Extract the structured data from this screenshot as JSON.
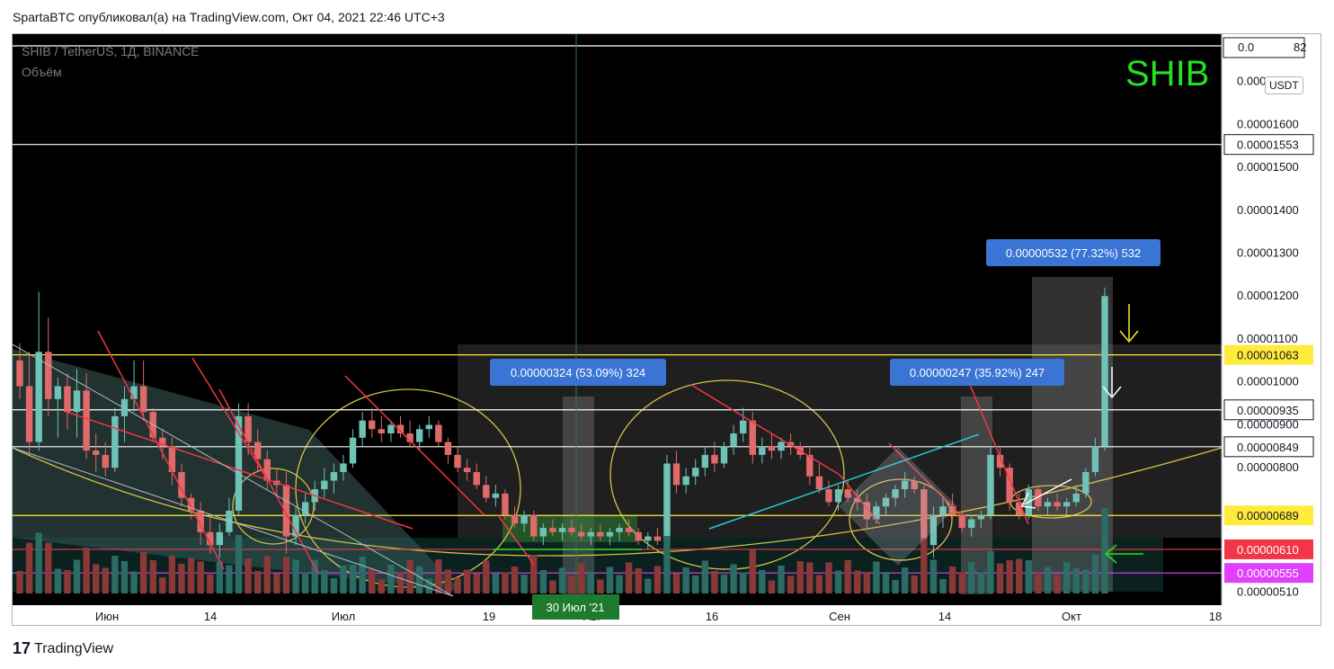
{
  "header": {
    "text": "SpartaBTC опубликовал(а) на TradingView.com, Окт 04, 2021 22:46 UTC+3"
  },
  "chart": {
    "symbol": "SHIB / TetherUS, 1Д, BINANCE",
    "volume_label": "Объём",
    "big_label": "SHIB",
    "currency": "USDT",
    "top_price_fragment": "0.0",
    "top_price_tail": "82"
  },
  "footer": {
    "logo_text": "TradingView",
    "logo_mark": "17"
  },
  "chart_data": {
    "type": "candlestick",
    "ylim": [
      4.8e-06,
      1.81e-05
    ],
    "y_ticks": [
      "0.00001700",
      "0.00001600",
      "0.00001500",
      "0.00001400",
      "0.00001300",
      "0.00001200",
      "0.00001100",
      "0.00001000",
      "0.00000900",
      "0.00000800",
      "0.00000510"
    ],
    "x_ticks": [
      "Июн",
      "14",
      "Июл",
      "19",
      "Авг",
      "16",
      "Сен",
      "14",
      "Окт",
      "18"
    ],
    "cursor_date_label": "30 Июл '21",
    "horizontal_levels": [
      {
        "label": "0.00001553",
        "value": 1.553e-05,
        "color": "#ffffff",
        "text_color": "#131722"
      },
      {
        "label": "0.00001063",
        "value": 1.063e-05,
        "color": "#ffeb3b",
        "text_color": "#131722"
      },
      {
        "label": "0.00000935",
        "value": 9.35e-06,
        "color": "#ffffff",
        "text_color": "#131722"
      },
      {
        "label": "0.00000849",
        "value": 8.49e-06,
        "color": "#ffffff",
        "text_color": "#131722"
      },
      {
        "label": "0.00000689",
        "value": 6.89e-06,
        "color": "#ffeb3b",
        "text_color": "#131722"
      },
      {
        "label": "0.00000610",
        "value": 6.1e-06,
        "color": "#f23645",
        "text_color": "#ffffff"
      },
      {
        "label": "0.00000555",
        "value": 5.55e-06,
        "color": "#e040fb",
        "text_color": "#ffffff"
      }
    ],
    "measure_labels": [
      "0.00000532 (77.32%) 532",
      "0.00000324 (53.09%) 324",
      "0.00000247 (35.92%) 247"
    ],
    "candles": [
      [
        10.5,
        10.9,
        9.6,
        9.9
      ],
      [
        9.9,
        10.7,
        8.3,
        8.6
      ],
      [
        8.6,
        12.1,
        8.4,
        10.7
      ],
      [
        10.7,
        11.5,
        9.2,
        9.6
      ],
      [
        9.6,
        10.1,
        8.7,
        9.9
      ],
      [
        9.9,
        10.2,
        8.9,
        9.3
      ],
      [
        9.3,
        10.3,
        8.7,
        9.8
      ],
      [
        9.8,
        10.2,
        8.2,
        8.4
      ],
      [
        8.4,
        8.8,
        7.9,
        8.3
      ],
      [
        8.3,
        8.6,
        7.8,
        8.0
      ],
      [
        8.0,
        9.4,
        7.9,
        9.2
      ],
      [
        9.2,
        9.9,
        8.6,
        9.6
      ],
      [
        9.6,
        10.5,
        9.3,
        9.9
      ],
      [
        9.9,
        10.5,
        9.1,
        9.3
      ],
      [
        9.3,
        9.4,
        8.6,
        8.7
      ],
      [
        8.7,
        8.9,
        8.2,
        8.5
      ],
      [
        8.5,
        8.7,
        7.6,
        7.9
      ],
      [
        7.9,
        8.1,
        7.1,
        7.3
      ],
      [
        7.3,
        7.4,
        6.8,
        7.0
      ],
      [
        7.0,
        7.2,
        6.2,
        6.5
      ],
      [
        6.5,
        6.9,
        6.0,
        6.2
      ],
      [
        6.2,
        6.7,
        5.9,
        6.5
      ],
      [
        6.5,
        7.3,
        6.4,
        7.0
      ],
      [
        7.0,
        9.5,
        6.9,
        9.2
      ],
      [
        9.2,
        9.5,
        8.3,
        8.6
      ],
      [
        8.6,
        8.9,
        7.9,
        8.2
      ],
      [
        8.2,
        8.4,
        7.5,
        7.7
      ],
      [
        7.7,
        8.0,
        7.3,
        7.6
      ],
      [
        7.6,
        7.9,
        6.0,
        6.4
      ],
      [
        6.4,
        7.1,
        6.2,
        6.9
      ],
      [
        6.9,
        7.4,
        6.7,
        7.2
      ],
      [
        7.2,
        7.7,
        7.0,
        7.5
      ],
      [
        7.5,
        8.0,
        7.3,
        7.7
      ],
      [
        7.7,
        8.1,
        7.4,
        7.9
      ],
      [
        7.9,
        8.3,
        7.7,
        8.1
      ],
      [
        8.1,
        8.9,
        8.0,
        8.7
      ],
      [
        8.7,
        9.3,
        8.5,
        9.1
      ],
      [
        9.1,
        9.4,
        8.7,
        8.9
      ],
      [
        8.9,
        9.2,
        8.6,
        8.8
      ],
      [
        8.8,
        9.1,
        8.6,
        9.0
      ],
      [
        9.0,
        9.2,
        8.7,
        8.8
      ],
      [
        8.8,
        9.1,
        8.5,
        8.6
      ],
      [
        8.6,
        9.0,
        8.4,
        8.9
      ],
      [
        8.9,
        9.2,
        8.7,
        9.0
      ],
      [
        9.0,
        9.1,
        8.5,
        8.6
      ],
      [
        8.6,
        8.7,
        8.1,
        8.3
      ],
      [
        8.3,
        8.5,
        7.9,
        8.0
      ],
      [
        8.0,
        8.2,
        7.7,
        7.9
      ],
      [
        7.9,
        8.1,
        7.5,
        7.6
      ],
      [
        7.6,
        7.8,
        7.2,
        7.3
      ],
      [
        7.3,
        7.6,
        7.1,
        7.4
      ],
      [
        7.4,
        7.5,
        6.8,
        6.9
      ],
      [
        6.9,
        7.1,
        6.6,
        6.7
      ],
      [
        6.7,
        7.0,
        6.5,
        6.9
      ],
      [
        6.9,
        7.0,
        6.3,
        6.4
      ],
      [
        6.4,
        6.7,
        6.2,
        6.6
      ],
      [
        6.6,
        6.8,
        6.4,
        6.5
      ],
      [
        6.5,
        6.7,
        6.3,
        6.6
      ],
      [
        6.6,
        6.8,
        6.4,
        6.5
      ],
      [
        6.5,
        6.7,
        6.3,
        6.4
      ],
      [
        6.4,
        6.6,
        6.2,
        6.5
      ],
      [
        6.5,
        6.7,
        6.3,
        6.4
      ],
      [
        6.4,
        6.6,
        6.2,
        6.5
      ],
      [
        6.5,
        6.7,
        6.3,
        6.6
      ],
      [
        6.6,
        6.8,
        6.4,
        6.5
      ],
      [
        6.5,
        6.6,
        6.2,
        6.3
      ],
      [
        6.3,
        6.5,
        6.1,
        6.4
      ],
      [
        6.4,
        6.6,
        6.2,
        6.3
      ],
      [
        6.3,
        8.3,
        6.2,
        8.1
      ],
      [
        8.1,
        8.4,
        7.4,
        7.6
      ],
      [
        7.6,
        8.0,
        7.4,
        7.8
      ],
      [
        7.8,
        8.2,
        7.6,
        8.0
      ],
      [
        8.0,
        8.5,
        7.8,
        8.3
      ],
      [
        8.3,
        8.6,
        7.9,
        8.1
      ],
      [
        8.1,
        8.6,
        8.0,
        8.5
      ],
      [
        8.5,
        9.0,
        8.3,
        8.8
      ],
      [
        8.8,
        9.4,
        8.6,
        9.1
      ],
      [
        9.1,
        9.3,
        8.1,
        8.3
      ],
      [
        8.3,
        8.7,
        8.1,
        8.5
      ],
      [
        8.5,
        8.8,
        8.2,
        8.4
      ],
      [
        8.4,
        8.7,
        8.2,
        8.6
      ],
      [
        8.6,
        8.8,
        8.3,
        8.5
      ],
      [
        8.5,
        8.6,
        8.2,
        8.3
      ],
      [
        8.3,
        8.5,
        7.6,
        7.8
      ],
      [
        7.8,
        8.1,
        7.4,
        7.5
      ],
      [
        7.5,
        7.7,
        7.1,
        7.2
      ],
      [
        7.2,
        7.6,
        7.0,
        7.5
      ],
      [
        7.5,
        7.7,
        7.2,
        7.3
      ],
      [
        7.3,
        7.5,
        7.0,
        7.2
      ],
      [
        7.2,
        7.4,
        6.6,
        6.8
      ],
      [
        6.8,
        7.2,
        6.7,
        7.1
      ],
      [
        7.1,
        7.4,
        6.9,
        7.3
      ],
      [
        7.3,
        7.6,
        7.1,
        7.5
      ],
      [
        7.5,
        7.9,
        7.3,
        7.7
      ],
      [
        7.7,
        7.8,
        7.4,
        7.5
      ],
      [
        7.5,
        7.6,
        6.0,
        6.2
      ],
      [
        6.2,
        7.1,
        5.9,
        6.9
      ],
      [
        6.9,
        7.3,
        6.6,
        7.1
      ],
      [
        7.1,
        7.4,
        6.8,
        6.9
      ],
      [
        6.9,
        7.0,
        6.5,
        6.6
      ],
      [
        6.6,
        6.9,
        6.4,
        6.8
      ],
      [
        6.8,
        7.0,
        6.6,
        6.9
      ],
      [
        6.9,
        8.5,
        6.8,
        8.3
      ],
      [
        8.3,
        8.5,
        7.8,
        8.0
      ],
      [
        8.0,
        8.1,
        7.0,
        7.2
      ],
      [
        7.2,
        7.4,
        6.8,
        6.9
      ],
      [
        6.9,
        7.6,
        6.8,
        7.5
      ],
      [
        7.5,
        7.6,
        7.0,
        7.1
      ],
      [
        7.1,
        7.3,
        6.9,
        7.2
      ],
      [
        7.2,
        7.4,
        7.0,
        7.1
      ],
      [
        7.1,
        7.3,
        6.9,
        7.2
      ],
      [
        7.2,
        7.6,
        7.1,
        7.4
      ],
      [
        7.4,
        8.0,
        7.3,
        7.9
      ],
      [
        7.9,
        8.7,
        7.8,
        8.5
      ],
      [
        8.5,
        12.2,
        8.4,
        12.0
      ]
    ]
  }
}
